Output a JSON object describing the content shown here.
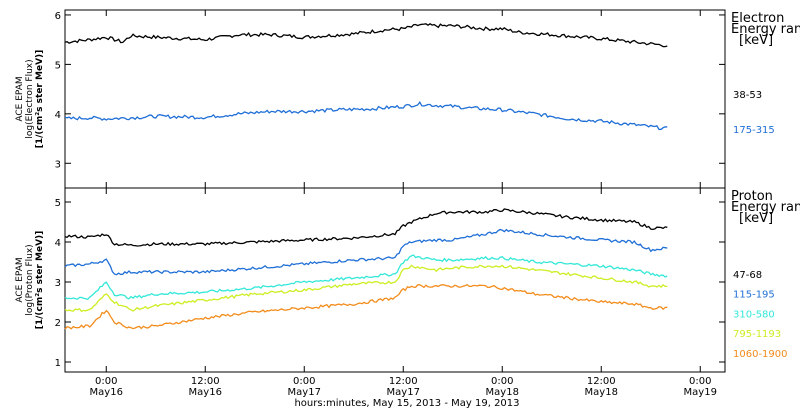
{
  "chart_data": {
    "type": "line",
    "xlabel": "hours:minutes, May 15, 2013 - May 19, 2013",
    "x_ticks": [
      {
        "time": "0:00",
        "date": "May16",
        "hours": 0
      },
      {
        "time": "12:00",
        "date": "May16",
        "hours": 12
      },
      {
        "time": "0:00",
        "date": "May17",
        "hours": 24
      },
      {
        "time": "12:00",
        "date": "May17",
        "hours": 36
      },
      {
        "time": "0:00",
        "date": "May18",
        "hours": 48
      },
      {
        "time": "12:00",
        "date": "May18",
        "hours": 60
      },
      {
        "time": "0:00",
        "date": "May19",
        "hours": 72
      }
    ],
    "x_range_hours": [
      -5,
      75
    ],
    "panels": [
      {
        "id": "electron",
        "ylabel": [
          "ACE EPAM",
          "log(Electron Flux)",
          "[1/(cm²s ster MeV)]"
        ],
        "ylim": [
          2.5,
          6.1
        ],
        "yticks": [
          3,
          4,
          5,
          6
        ],
        "legend_title": [
          "Electron",
          "Energy range",
          "[keV]"
        ],
        "series": [
          {
            "name": "38-53",
            "color": "#000000",
            "x": [
              -5,
              -2,
              0,
              2,
              3,
              6,
              12,
              16,
              20,
              24,
              30,
              34,
              36,
              38,
              40,
              42,
              46,
              48,
              50,
              54,
              60,
              64,
              68
            ],
            "y": [
              5.45,
              5.5,
              5.55,
              5.45,
              5.58,
              5.55,
              5.5,
              5.6,
              5.6,
              5.55,
              5.62,
              5.7,
              5.72,
              5.8,
              5.78,
              5.78,
              5.72,
              5.72,
              5.65,
              5.6,
              5.52,
              5.45,
              5.38
            ]
          },
          {
            "name": "175-315",
            "color": "#1f6fd6",
            "x": [
              -5,
              -2,
              0,
              3,
              6,
              12,
              16,
              20,
              24,
              28,
              32,
              36,
              38,
              40,
              42,
              44,
              48,
              52,
              56,
              60,
              64,
              68
            ],
            "y": [
              3.9,
              3.92,
              3.9,
              3.92,
              3.95,
              3.93,
              4.0,
              4.05,
              4.05,
              4.08,
              4.1,
              4.15,
              4.2,
              4.17,
              4.15,
              4.12,
              4.08,
              4.0,
              3.9,
              3.85,
              3.78,
              3.7
            ]
          }
        ]
      },
      {
        "id": "proton",
        "ylabel": [
          "ACE EPAM",
          "log(Proton Flux)",
          "[1/(cm²s ster MeV)]"
        ],
        "ylim": [
          0.75,
          5.35
        ],
        "yticks": [
          1,
          2,
          3,
          4,
          5
        ],
        "legend_title": [
          "Proton",
          "Energy range",
          "[keV]"
        ],
        "series": [
          {
            "name": "47-68",
            "color": "#000000",
            "x": [
              -5,
              -2,
              0,
              1,
              3,
              6,
              12,
              18,
              24,
              30,
              35,
              36,
              37,
              40,
              42,
              46,
              48,
              52,
              56,
              60,
              64,
              66,
              68
            ],
            "y": [
              4.15,
              4.12,
              4.2,
              3.95,
              3.92,
              3.95,
              3.95,
              4.0,
              4.05,
              4.1,
              4.2,
              4.4,
              4.5,
              4.72,
              4.75,
              4.75,
              4.8,
              4.72,
              4.62,
              4.55,
              4.5,
              4.35,
              4.35
            ]
          },
          {
            "name": "115-195",
            "color": "#1f6fd6",
            "x": [
              -5,
              -2,
              0,
              1,
              3,
              6,
              12,
              18,
              24,
              30,
              35,
              36,
              37,
              40,
              42,
              46,
              48,
              52,
              56,
              60,
              64,
              66,
              68
            ],
            "y": [
              3.4,
              3.45,
              3.55,
              3.2,
              3.25,
              3.25,
              3.25,
              3.35,
              3.45,
              3.55,
              3.6,
              3.9,
              4.0,
              4.05,
              4.05,
              4.2,
              4.3,
              4.2,
              4.12,
              4.05,
              4.0,
              3.8,
              3.85
            ]
          },
          {
            "name": "310-580",
            "color": "#33e8d8",
            "x": [
              -5,
              -2,
              0,
              1,
              3,
              6,
              12,
              18,
              24,
              30,
              35,
              36,
              37,
              40,
              42,
              46,
              48,
              52,
              56,
              60,
              64,
              66,
              68
            ],
            "y": [
              2.6,
              2.6,
              3.0,
              2.7,
              2.6,
              2.7,
              2.75,
              2.85,
              3.0,
              3.1,
              3.2,
              3.5,
              3.65,
              3.55,
              3.55,
              3.6,
              3.6,
              3.5,
              3.45,
              3.4,
              3.3,
              3.2,
              3.15
            ]
          },
          {
            "name": "795-1193",
            "color": "#ccee22",
            "x": [
              -5,
              -2,
              0,
              1,
              3,
              6,
              12,
              18,
              24,
              30,
              35,
              36,
              37,
              40,
              42,
              46,
              48,
              52,
              56,
              60,
              64,
              66,
              68
            ],
            "y": [
              2.3,
              2.3,
              2.7,
              2.5,
              2.3,
              2.4,
              2.55,
              2.7,
              2.8,
              2.95,
              3.0,
              3.3,
              3.4,
              3.3,
              3.35,
              3.4,
              3.4,
              3.3,
              3.2,
              3.1,
              3.0,
              2.9,
              2.9
            ]
          },
          {
            "name": "1060-1900",
            "color": "#f28c1c",
            "x": [
              -5,
              -2,
              0,
              1,
              3,
              6,
              12,
              18,
              24,
              30,
              35,
              36,
              37,
              40,
              42,
              46,
              48,
              52,
              56,
              60,
              64,
              66,
              68
            ],
            "y": [
              1.85,
              1.9,
              2.3,
              2.0,
              1.85,
              1.9,
              2.1,
              2.25,
              2.35,
              2.45,
              2.6,
              2.8,
              2.9,
              2.9,
              2.9,
              2.9,
              2.85,
              2.7,
              2.6,
              2.5,
              2.45,
              2.35,
              2.35
            ]
          }
        ]
      }
    ]
  }
}
